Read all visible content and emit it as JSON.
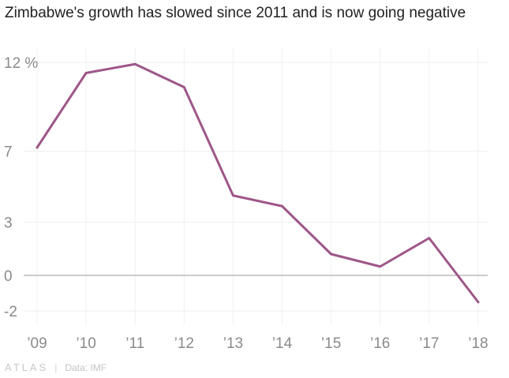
{
  "chart_data": {
    "type": "line",
    "title": "Zimbabwe's growth has slowed since 2011 and is now going negative",
    "x": [
      "’09",
      "’10",
      "’11",
      "’12",
      "’13",
      "’14",
      "’15",
      "’16",
      "’17",
      "’18"
    ],
    "series": [
      {
        "values": [
          7.2,
          11.4,
          11.9,
          10.6,
          4.5,
          3.9,
          1.2,
          0.5,
          2.1,
          -1.5
        ],
        "color": "#9e5688"
      }
    ],
    "yticks": [
      {
        "value": 12,
        "label": "12 %"
      },
      {
        "value": 7,
        "label": "7"
      },
      {
        "value": 3,
        "label": "3"
      },
      {
        "value": 0,
        "label": "0"
      },
      {
        "value": -2,
        "label": "-2"
      }
    ],
    "ylim": [
      -2.4,
      12.4
    ],
    "grid": true,
    "source": "Data: IMF"
  },
  "branding": {
    "logo_text": "ATLAS"
  }
}
